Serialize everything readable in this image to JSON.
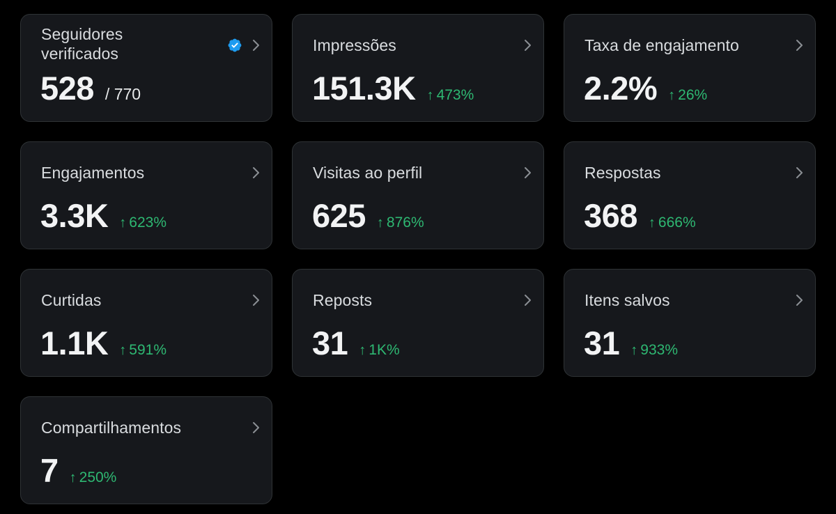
{
  "metrics": [
    {
      "label": "Seguidores verificados",
      "value": "528",
      "total": "/ 770",
      "verified_icon": "verified-badge-icon"
    },
    {
      "label": "Impressões",
      "value": "151.3K",
      "change": "473%"
    },
    {
      "label": "Taxa de engajamento",
      "value": "2.2%",
      "change": "26%"
    },
    {
      "label": "Engajamentos",
      "value": "3.3K",
      "change": "623%"
    },
    {
      "label": "Visitas ao perfil",
      "value": "625",
      "change": "876%"
    },
    {
      "label": "Respostas",
      "value": "368",
      "change": "666%"
    },
    {
      "label": "Curtidas",
      "value": "1.1K",
      "change": "591%"
    },
    {
      "label": "Reposts",
      "value": "31",
      "change": "1K%"
    },
    {
      "label": "Itens salvos",
      "value": "31",
      "change": "933%"
    },
    {
      "label": "Compartilhamentos",
      "value": "7",
      "change": "250%"
    }
  ],
  "icons": {
    "chevron": "chevron-right-icon",
    "arrow": "arrow-up-icon",
    "arrow_glyph": "↑"
  },
  "colors": {
    "background": "#000000",
    "card": "#16181c",
    "border": "#2f3336",
    "positive": "#2eb872",
    "verified": "#1d9bf0"
  }
}
